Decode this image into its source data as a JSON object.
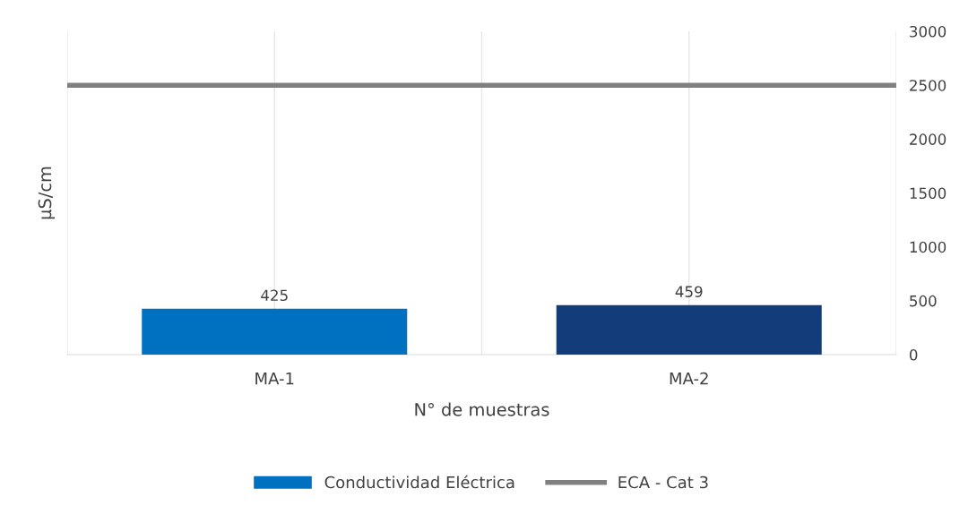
{
  "chart_data": {
    "type": "bar",
    "xlabel": "N° de muestras",
    "ylabel": "µS/cm",
    "categories": [
      "MA-1",
      "MA-2"
    ],
    "series": [
      {
        "name": "Conductividad Eléctrica",
        "color": "#0070c0",
        "colors": [
          "#0070c0",
          "#123d7a"
        ],
        "values": [
          425,
          459
        ]
      }
    ],
    "ylim": [
      0,
      3000
    ],
    "yticks": [
      0,
      500,
      1000,
      1500,
      2000,
      2500,
      3000
    ],
    "ref_lines": [
      {
        "axis": "y",
        "value": 2500,
        "label": "ECA - Cat 3",
        "color": "#808080"
      }
    ],
    "data_labels": true,
    "grid": "x",
    "legend": "bottom"
  }
}
